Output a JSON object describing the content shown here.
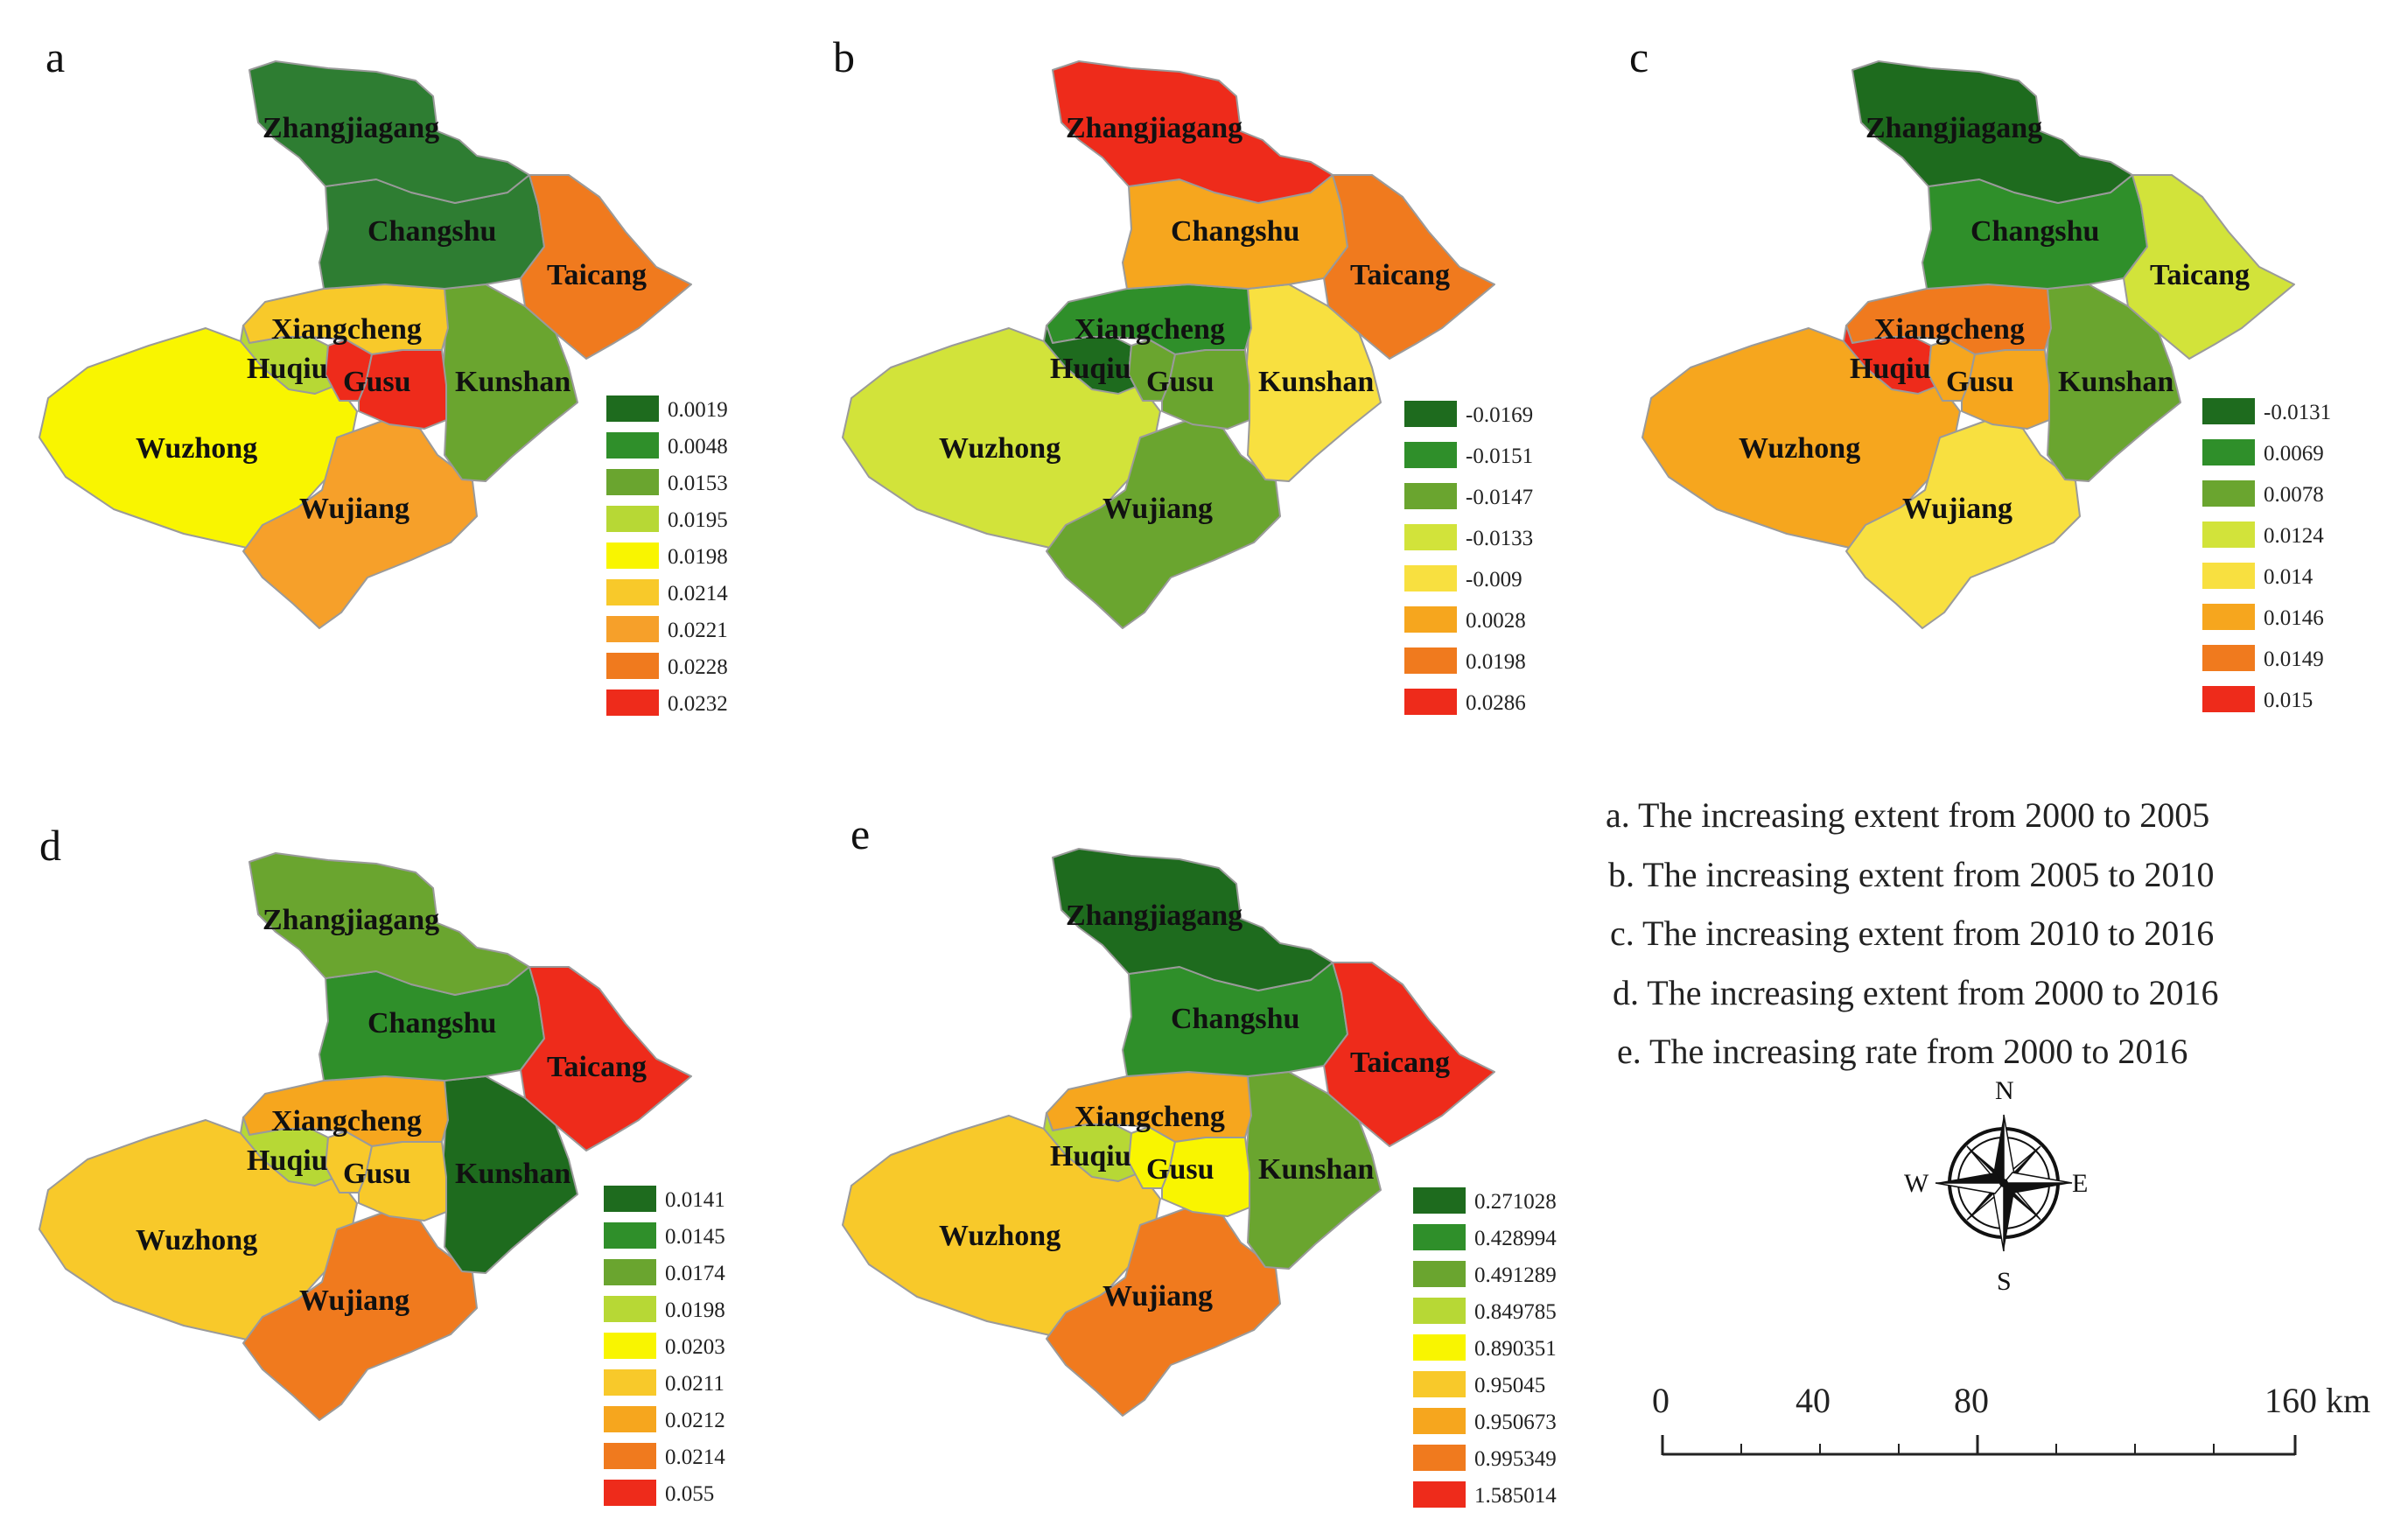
{
  "figure": {
    "panels": [
      {
        "letter": "a",
        "regions": {
          "Zhangjiagang": "#2e7d32",
          "Changshu": "#2e7d32",
          "Taicang": "#f07a1e",
          "Xiangcheng": "#f8c92a",
          "Huqiu": "#b7d835",
          "Gusu": "#ee2b1b",
          "Kunshan": "#6aa52f",
          "Wuzhong": "#f9f500",
          "Wujiang": "#f6a02a"
        },
        "legend": [
          {
            "label": "0.0019",
            "color": "#1e6b1e"
          },
          {
            "label": "0.0048",
            "color": "#2f8f2a"
          },
          {
            "label": "0.0153",
            "color": "#6aa52f"
          },
          {
            "label": "0.0195",
            "color": "#b7d835"
          },
          {
            "label": "0.0198",
            "color": "#f9f500"
          },
          {
            "label": "0.0214",
            "color": "#f8c92a"
          },
          {
            "label": "0.0221",
            "color": "#f6a02a"
          },
          {
            "label": "0.0228",
            "color": "#f07a1e"
          },
          {
            "label": "0.0232",
            "color": "#ee2b1b"
          }
        ]
      },
      {
        "letter": "b",
        "regions": {
          "Zhangjiagang": "#ee2b1b",
          "Changshu": "#f6a61e",
          "Taicang": "#f07a1e",
          "Xiangcheng": "#2f8f2a",
          "Huqiu": "#1e6b1e",
          "Gusu": "#6aa52f",
          "Kunshan": "#f8e040",
          "Wuzhong": "#d2e33a",
          "Wujiang": "#6aa52f"
        },
        "legend": [
          {
            "label": "-0.0169",
            "color": "#1e6b1e"
          },
          {
            "label": "-0.0151",
            "color": "#2f8f2a"
          },
          {
            "label": "-0.0147",
            "color": "#6aa52f"
          },
          {
            "label": "-0.0133",
            "color": "#d2e33a"
          },
          {
            "label": "-0.009",
            "color": "#f8e040"
          },
          {
            "label": "0.0028",
            "color": "#f6a61e"
          },
          {
            "label": "0.0198",
            "color": "#f07a1e"
          },
          {
            "label": "0.0286",
            "color": "#ee2b1b"
          }
        ]
      },
      {
        "letter": "c",
        "regions": {
          "Zhangjiagang": "#1e6b1e",
          "Changshu": "#2f8f2a",
          "Taicang": "#d2e33a",
          "Xiangcheng": "#f07a1e",
          "Huqiu": "#ee2b1b",
          "Gusu": "#f6a61e",
          "Kunshan": "#6aa52f",
          "Wuzhong": "#f6a61e",
          "Wujiang": "#f8e040"
        },
        "legend": [
          {
            "label": "-0.0131",
            "color": "#1e6b1e"
          },
          {
            "label": "0.0069",
            "color": "#2f8f2a"
          },
          {
            "label": "0.0078",
            "color": "#6aa52f"
          },
          {
            "label": "0.0124",
            "color": "#d2e33a"
          },
          {
            "label": "0.014",
            "color": "#f8e040"
          },
          {
            "label": "0.0146",
            "color": "#f6a61e"
          },
          {
            "label": "0.0149",
            "color": "#f07a1e"
          },
          {
            "label": "0.015",
            "color": "#ee2b1b"
          }
        ]
      },
      {
        "letter": "d",
        "regions": {
          "Zhangjiagang": "#6aa52f",
          "Changshu": "#2f8f2a",
          "Taicang": "#ee2b1b",
          "Xiangcheng": "#f6a61e",
          "Huqiu": "#b7d835",
          "Gusu": "#f8c92a",
          "Kunshan": "#1e6b1e",
          "Wuzhong": "#f8c92a",
          "Wujiang": "#f07a1e"
        },
        "legend": [
          {
            "label": "0.0141",
            "color": "#1e6b1e"
          },
          {
            "label": "0.0145",
            "color": "#2f8f2a"
          },
          {
            "label": "0.0174",
            "color": "#6aa52f"
          },
          {
            "label": "0.0198",
            "color": "#b7d835"
          },
          {
            "label": "0.0203",
            "color": "#f9f500"
          },
          {
            "label": "0.0211",
            "color": "#f8c92a"
          },
          {
            "label": "0.0212",
            "color": "#f6a61e"
          },
          {
            "label": "0.0214",
            "color": "#f07a1e"
          },
          {
            "label": "0.055",
            "color": "#ee2b1b"
          }
        ]
      },
      {
        "letter": "e",
        "regions": {
          "Zhangjiagang": "#1e6b1e",
          "Changshu": "#2f8f2a",
          "Taicang": "#ee2b1b",
          "Xiangcheng": "#f6a61e",
          "Huqiu": "#b7d835",
          "Gusu": "#f9f500",
          "Kunshan": "#6aa52f",
          "Wuzhong": "#f8c92a",
          "Wujiang": "#f07a1e"
        },
        "legend": [
          {
            "label": "0.271028",
            "color": "#1e6b1e"
          },
          {
            "label": "0.428994",
            "color": "#2f8f2a"
          },
          {
            "label": "0.491289",
            "color": "#6aa52f"
          },
          {
            "label": "0.849785",
            "color": "#b7d835"
          },
          {
            "label": "0.890351",
            "color": "#f9f500"
          },
          {
            "label": "0.95045",
            "color": "#f8c92a"
          },
          {
            "label": "0.950673",
            "color": "#f6a61e"
          },
          {
            "label": "0.995349",
            "color": "#f07a1e"
          },
          {
            "label": "1.585014",
            "color": "#ee2b1b"
          }
        ]
      }
    ],
    "captions": [
      "a. The increasing extent from 2000 to 2005",
      "b. The  increasing extent from 2005 to 2010",
      "c. The  increasing extent from 2010 to 2016",
      "d. The  increasing extent from 2000 to 2016",
      "e. The  increasing rate from 2000 to 2016"
    ],
    "compass": {
      "north": "N",
      "south": "S",
      "east": "E",
      "west": "W"
    },
    "scalebar": {
      "ticks": [
        "0",
        "40",
        "80",
        "160 km"
      ]
    }
  }
}
